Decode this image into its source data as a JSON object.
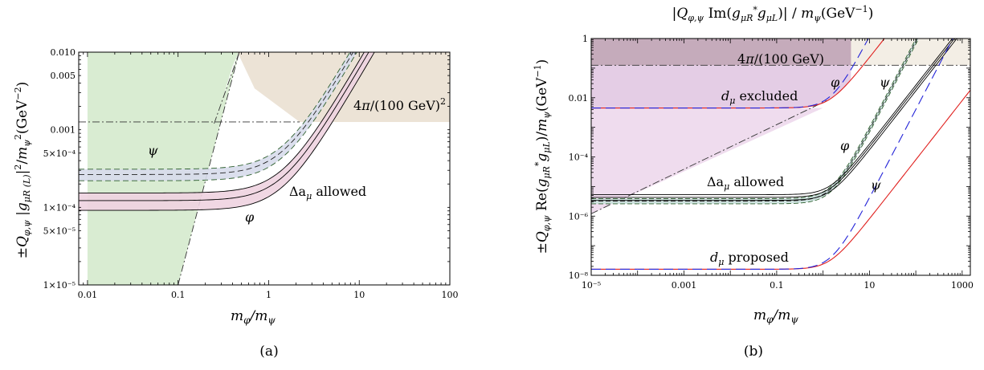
{
  "chart_data": [
    {
      "panel": "(a)",
      "type": "line",
      "xscale": "log",
      "yscale": "log",
      "xlim": [
        0.008,
        100
      ],
      "ylim": [
        1e-05,
        0.01
      ],
      "xlabel": "m_φ/m_ψ",
      "ylabel": "±Q_φ,ψ |g_μR (L)|² / m_ψ²(GeV⁻²)",
      "x_ticks": [
        {
          "value": 0.01,
          "label": "0.01"
        },
        {
          "value": 0.1,
          "label": "0.1"
        },
        {
          "value": 1,
          "label": "1"
        },
        {
          "value": 10,
          "label": "10"
        },
        {
          "value": 100,
          "label": "100"
        }
      ],
      "y_ticks": [
        {
          "value": 1e-05,
          "label": "1×10⁻⁵"
        },
        {
          "value": 5e-05,
          "label": "5×10⁻⁵"
        },
        {
          "value": 0.0001,
          "label": "1×10⁻⁴"
        },
        {
          "value": 0.0005,
          "label": "5×10⁻⁴"
        },
        {
          "value": 0.001,
          "label": "0.001"
        },
        {
          "value": 0.005,
          "label": "0.005"
        },
        {
          "value": 0.01,
          "label": "0.010"
        }
      ],
      "regions": [
        {
          "name": "perturbativity",
          "label": "4π/(100 GeV)²",
          "y_min": 0.00126,
          "color": "#ece3d6"
        },
        {
          "name": "green",
          "color": "#d9ecd2"
        }
      ],
      "bands": [
        {
          "label": "φ",
          "style": "solid",
          "color": "#eed3e0",
          "lower": 9.15e-05,
          "central": 0.000122,
          "upper": 0.000153
        },
        {
          "label": "ψ",
          "style": "dashed",
          "color": "#d7dceb",
          "lower": 0.00022,
          "central": 0.000265,
          "upper": 0.00031
        }
      ],
      "annotations": [
        {
          "text": "Δa_μ allowed"
        },
        {
          "text": "ψ"
        },
        {
          "text": "φ"
        }
      ],
      "caption": "(a)"
    },
    {
      "panel": "(b)",
      "type": "line",
      "xscale": "log",
      "yscale": "log",
      "xlim": [
        1e-05,
        1500
      ],
      "ylim": [
        1e-08,
        1
      ],
      "xlabel": "m_φ/m_ψ",
      "ylabel": "±Q_φ,ψ Re(g_μR* g_μL)/m_ψ(GeV⁻¹)",
      "top_label": "|Q_φ,ψ Im(g_μR* g_μL)| / m_ψ(GeV⁻¹)",
      "x_ticks": [
        {
          "value": 1e-05,
          "label": "10⁻⁵"
        },
        {
          "value": 0.001,
          "label": "0.001"
        },
        {
          "value": 0.1,
          "label": "0.1"
        },
        {
          "value": 10,
          "label": "10"
        },
        {
          "value": 1000,
          "label": "1000"
        }
      ],
      "y_ticks": [
        {
          "value": 1e-08,
          "label": "10⁻⁸"
        },
        {
          "value": 1e-06,
          "label": "10⁻⁶"
        },
        {
          "value": 0.0001,
          "label": "10⁻⁴"
        },
        {
          "value": 0.01,
          "label": "0.01"
        },
        {
          "value": 1,
          "label": "1"
        }
      ],
      "regions": [
        {
          "name": "perturbativity",
          "label": "4π/(100 GeV)",
          "y_min": 0.125,
          "color": "#e9e0d0"
        },
        {
          "name": "d_μ excluded",
          "color": "#e4cde5"
        }
      ],
      "bands": [
        {
          "label": "φ",
          "style": "solid",
          "lower": 3.4e-06,
          "central": 4.3e-06,
          "upper": 5.3e-06
        },
        {
          "label": "ψ",
          "style": "dashed",
          "color": "#cfe3e0",
          "lower": 2.6e-06,
          "central": 3.2e-06,
          "upper": 3.9e-06
        }
      ],
      "edm_lines": [
        {
          "label": "φ",
          "color": "#e0201e",
          "style": "solid",
          "excluded_floor": 0.0045,
          "proposed_floor": 1.6e-08
        },
        {
          "label": "ψ",
          "color": "#2323d8",
          "style": "dashed",
          "excluded_floor": 0.0045,
          "proposed_floor": 1.6e-08
        }
      ],
      "annotations": [
        {
          "text": "d_μ excluded"
        },
        {
          "text": "d_μ proposed"
        },
        {
          "text": "Δa_μ allowed"
        },
        {
          "text": "φ"
        },
        {
          "text": "ψ"
        }
      ],
      "caption": "(b)"
    }
  ]
}
